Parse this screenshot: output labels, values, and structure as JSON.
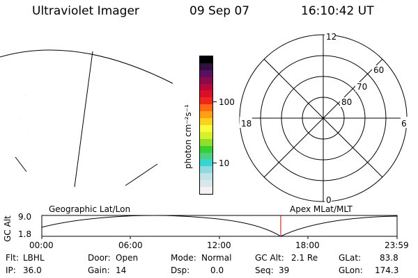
{
  "header": {
    "title": "Ultraviolet Imager",
    "date": "09 Sep 07",
    "time": "16:10:42 UT"
  },
  "colorbar": {
    "unit_label": "photon cm⁻²s⁻¹",
    "tick_100": "100",
    "tick_10": "10",
    "colors": [
      "#f2f2f2",
      "#d9e6ea",
      "#bfe3e8",
      "#8ddbe0",
      "#3ad4d0",
      "#4fd080",
      "#37cf33",
      "#8fdf2c",
      "#d8f02a",
      "#f6fb3e",
      "#ffd01e",
      "#ff9f18",
      "#ff6a12",
      "#f0251c",
      "#d8102a",
      "#b80838",
      "#8a0a4a",
      "#5a1060",
      "#301040",
      "#000000"
    ]
  },
  "geo_panel": {
    "label": "Geographic Lat/Lon"
  },
  "polar_plot": {
    "label": "Apex MLat/MLT",
    "mlt_12": "12",
    "mlt_18": "18",
    "mlt_6": "6",
    "mlt_0": "0",
    "lat_60": "60",
    "lat_70": "70",
    "lat_80": "80"
  },
  "altitude_plot": {
    "ylabel": "GC Alt",
    "ytick_top": "9.0",
    "ytick_bottom": "1.8",
    "xticks": [
      "00:00",
      "06:00",
      "12:00",
      "18:00",
      "23:59"
    ],
    "marker_color": "#cc0000"
  },
  "status": {
    "flt_label": "Flt:",
    "flt_value": "LBHL",
    "ip_label": "IP:",
    "ip_value": "36.0",
    "door_label": "Door:",
    "door_value": "Open",
    "gain_label": "Gain:",
    "gain_value": "14",
    "mode_label": "Mode:",
    "mode_value": "Normal",
    "dsp_label": "Dsp:",
    "dsp_value": "0.0",
    "gcalt_label": "GC Alt:",
    "gcalt_value": "2.1 Re",
    "seq_label": "Seq:",
    "seq_value": "39",
    "glat_label": "GLat:",
    "glat_value": "83.8",
    "glon_label": "GLon:",
    "glon_value": "174.3"
  }
}
